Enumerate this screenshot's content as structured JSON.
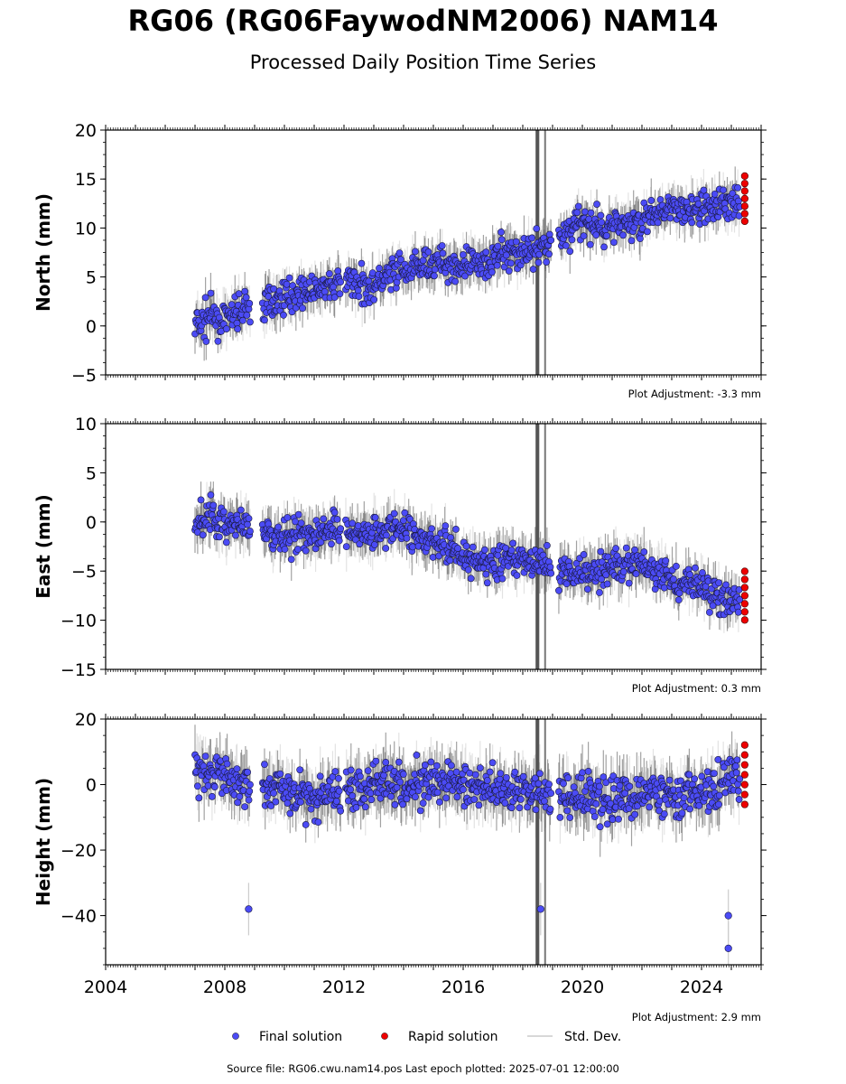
{
  "title": "RG06 (RG06FaywodNM2006) NAM14",
  "subtitle": "Processed Daily Position Time Series",
  "source_line": "Source file: RG06.cwu.nam14.pos  Last epoch plotted: 2025-07-01 12:00:00",
  "legend": [
    {
      "label": "Final solution",
      "color": "#4b4bf5",
      "kind": "marker"
    },
    {
      "label": "Rapid solution",
      "color": "#ee0000",
      "kind": "marker"
    },
    {
      "label": "Std. Dev.",
      "color": "#cccccc",
      "kind": "line"
    }
  ],
  "colors": {
    "final": "#4b4bf5",
    "rapid": "#ee0000",
    "stddev_light": "#cccccc",
    "stddev_dark": "#555555"
  },
  "chart_data": [
    {
      "type": "scatter",
      "ylabel": "North (mm)",
      "adjustment": "Plot Adjustment: -3.3 mm",
      "xlim": [
        2004,
        2026
      ],
      "ylim": [
        -5,
        20
      ],
      "yticks": [
        -5,
        0,
        5,
        10,
        15,
        20
      ],
      "xticks": [],
      "x": [
        2007.0,
        2007.5,
        2008.0,
        2008.5,
        2009.3,
        2010.0,
        2010.5,
        2011.0,
        2011.5,
        2012.2,
        2012.8,
        2013.5,
        2014.0,
        2014.5,
        2015.0,
        2015.5,
        2016.0,
        2016.5,
        2017.0,
        2017.5,
        2018.0,
        2018.4,
        2019.3,
        2019.8,
        2020.3,
        2020.8,
        2021.3,
        2021.8,
        2022.3,
        2022.8,
        2023.3,
        2023.8,
        2024.3,
        2024.8
      ],
      "y": [
        0.0,
        1.0,
        0.5,
        1.5,
        2.0,
        3.0,
        3.5,
        3.5,
        4.0,
        4.5,
        4.0,
        5.0,
        5.5,
        6.0,
        6.5,
        6.5,
        6.0,
        6.5,
        7.0,
        7.5,
        7.5,
        8.0,
        9.0,
        10.5,
        10.0,
        10.0,
        10.5,
        10.5,
        11.0,
        12.5,
        11.5,
        12.0,
        12.0,
        12.5
      ],
      "rapid": {
        "x": [
          2025.45
        ],
        "y": [
          13.0
        ]
      }
    },
    {
      "type": "scatter",
      "ylabel": "East (mm)",
      "adjustment": "Plot Adjustment: 0.3 mm",
      "xlim": [
        2004,
        2026
      ],
      "ylim": [
        -15,
        10
      ],
      "yticks": [
        -15,
        -10,
        -5,
        0,
        5,
        10
      ],
      "xticks": [],
      "x": [
        2007.0,
        2007.5,
        2008.0,
        2008.5,
        2009.3,
        2010.0,
        2010.5,
        2011.0,
        2011.5,
        2012.2,
        2012.8,
        2013.5,
        2014.0,
        2014.5,
        2015.0,
        2015.5,
        2016.0,
        2016.5,
        2017.0,
        2017.5,
        2018.0,
        2018.4,
        2019.3,
        2019.8,
        2020.3,
        2020.8,
        2021.3,
        2021.8,
        2022.3,
        2022.8,
        2023.3,
        2023.8,
        2024.3,
        2024.8
      ],
      "y": [
        0.0,
        0.5,
        0.0,
        -0.5,
        -1.5,
        -1.5,
        -1.0,
        -1.5,
        -0.5,
        -1.0,
        -1.0,
        -0.5,
        -1.0,
        -1.5,
        -2.0,
        -2.5,
        -3.5,
        -4.0,
        -4.5,
        -4.0,
        -4.0,
        -4.0,
        -5.0,
        -5.0,
        -5.0,
        -4.5,
        -4.5,
        -4.0,
        -5.0,
        -5.5,
        -6.5,
        -6.5,
        -7.0,
        -8.0
      ],
      "rapid": {
        "x": [
          2025.45
        ],
        "y": [
          -7.5
        ]
      }
    },
    {
      "type": "scatter",
      "ylabel": "Height (mm)",
      "adjustment": "Plot Adjustment: 2.9 mm",
      "xlim": [
        2004,
        2026
      ],
      "ylim": [
        -55,
        20
      ],
      "yticks": [
        -40,
        -20,
        0,
        20
      ],
      "xticks": [
        2004,
        2008,
        2012,
        2016,
        2020,
        2024
      ],
      "x": [
        2007.0,
        2007.5,
        2008.0,
        2008.5,
        2009.3,
        2010.0,
        2010.5,
        2011.0,
        2011.5,
        2012.2,
        2012.8,
        2013.5,
        2014.0,
        2014.5,
        2015.0,
        2015.5,
        2016.0,
        2016.5,
        2017.0,
        2017.5,
        2018.0,
        2018.4,
        2019.3,
        2019.8,
        2020.3,
        2020.8,
        2021.3,
        2021.8,
        2022.3,
        2022.8,
        2023.3,
        2023.8,
        2024.3,
        2024.8
      ],
      "y": [
        5.0,
        3.0,
        2.0,
        1.0,
        0.0,
        -2.0,
        -3.0,
        -4.0,
        -3.0,
        0.0,
        0.0,
        1.0,
        0.0,
        0.0,
        -1.0,
        1.0,
        0.0,
        -1.0,
        -1.0,
        -1.0,
        -1.0,
        -2.0,
        -4.0,
        -4.0,
        -4.0,
        -5.0,
        -4.0,
        -3.0,
        -3.0,
        -2.0,
        -3.0,
        -2.0,
        -3.0,
        2.0
      ],
      "outliers": {
        "x": [
          2008.8,
          2024.9,
          2024.9,
          2018.6
        ],
        "y": [
          -38,
          -40,
          -50,
          -38
        ]
      },
      "rapid": {
        "x": [
          2025.45
        ],
        "y": [
          3.0
        ]
      }
    }
  ]
}
